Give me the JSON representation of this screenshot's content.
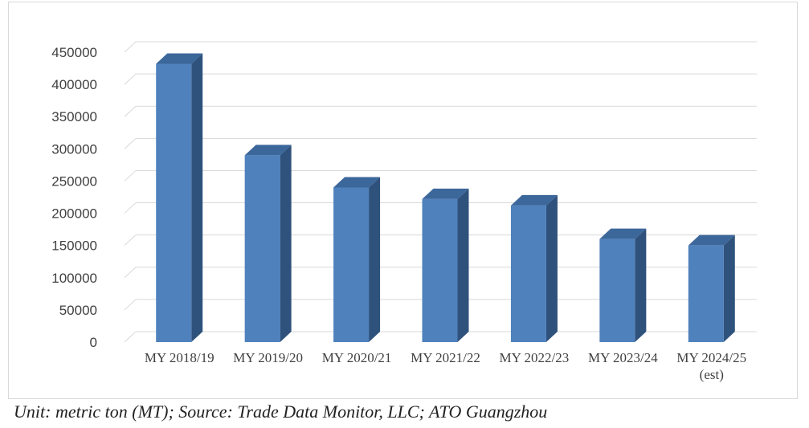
{
  "chart_data": {
    "type": "bar",
    "style": "3d-column",
    "categories": [
      [
        "MY 2018/19"
      ],
      [
        "MY 2019/20"
      ],
      [
        "MY 2020/21"
      ],
      [
        "MY 2021/22"
      ],
      [
        "MY 2022/23"
      ],
      [
        "MY 2023/24"
      ],
      [
        "MY 2024/25",
        "(est)"
      ]
    ],
    "values": [
      432000,
      290000,
      240000,
      222000,
      212000,
      160000,
      150000
    ],
    "ylim": [
      0,
      450000
    ],
    "yticks": [
      "0",
      "50000",
      "100000",
      "150000",
      "200000",
      "250000",
      "300000",
      "350000",
      "400000",
      "450000"
    ],
    "grid": true,
    "legend": "none",
    "colors": {
      "bar_front": "#4f81bd",
      "bar_side": "#2f527c",
      "bar_top": "#3c679b",
      "grid": "#d9d9d9",
      "text": "#404040"
    }
  },
  "caption": "Unit: metric ton (MT); Source: Trade Data Monitor, LLC; ATO Guangzhou"
}
